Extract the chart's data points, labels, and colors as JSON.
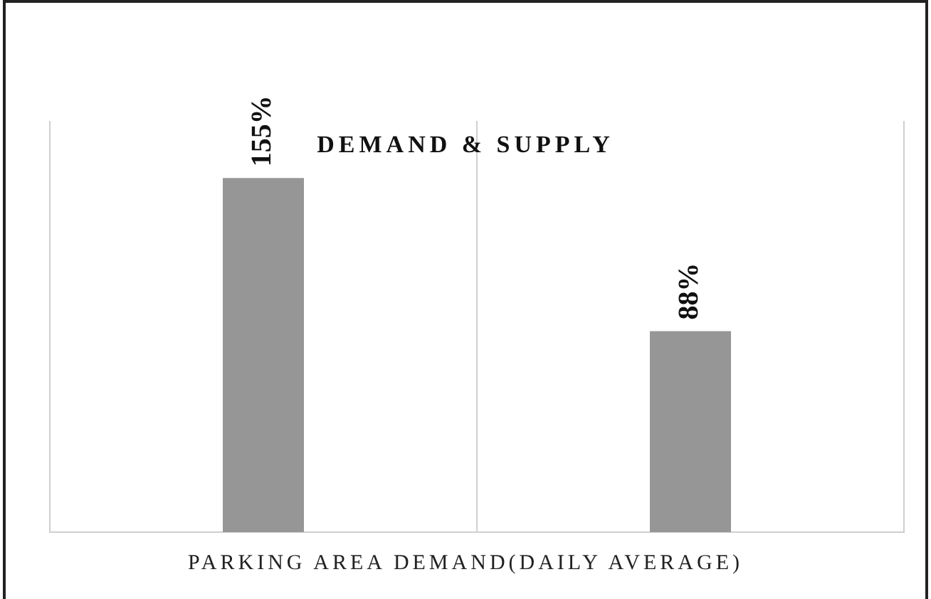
{
  "chart_data": {
    "type": "bar",
    "title": "DEMAND & SUPPLY",
    "xlabel": "PARKING AREA DEMAND(DAILY AVERAGE)",
    "categories": [
      null,
      null
    ],
    "values": [
      155,
      88
    ],
    "value_labels": [
      "155%",
      "88%"
    ],
    "color": "#969696",
    "grid": "x",
    "legend": false
  }
}
